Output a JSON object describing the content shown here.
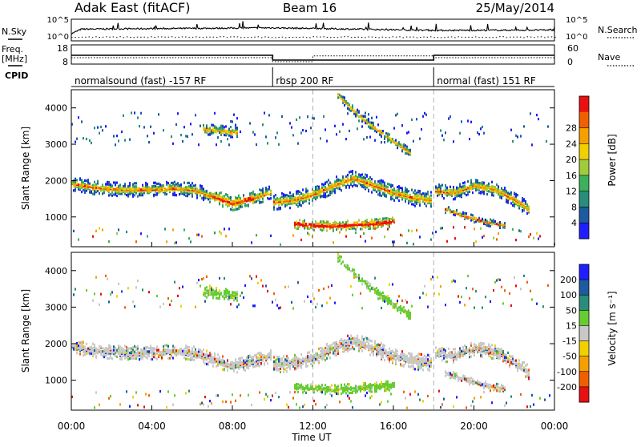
{
  "header": {
    "station": "Adak East (fitACF)",
    "beam": "Beam 16",
    "date": "25/May/2014"
  },
  "side_labels": {
    "nsky": "N.Sky",
    "freq_line1": "Freq.",
    "freq_line2": "[MHz]",
    "cpid": "CPID",
    "nsearch": "N.Search",
    "nave": "Nave"
  },
  "cpid_segments": [
    {
      "label": "normalsound (fast) -157 RF",
      "start_hour": 0,
      "end_hour": 10
    },
    {
      "label": "rbsp 200 RF",
      "start_hour": 10,
      "end_hour": 18
    },
    {
      "label": "normal (fast) 151 RF",
      "start_hour": 18,
      "end_hour": 24
    }
  ],
  "colors": {
    "power_scale": [
      "#1e1eff",
      "#1e5aa0",
      "#2a8c7a",
      "#3cb05a",
      "#a0cc3c",
      "#f0d000",
      "#f5a000",
      "#f06000",
      "#e81010"
    ],
    "velocity_scale": [
      "#1e1eff",
      "#1e5aa0",
      "#2a8c7a",
      "#66cc33",
      "#c8c8c8",
      "#f0d000",
      "#f5a000",
      "#f06000",
      "#e81010"
    ]
  },
  "chart_data": [
    {
      "type": "line",
      "panel": "noise",
      "left_ylabel": "N.Sky",
      "right_ylabel": "N.Search",
      "left_ticks": [
        "10^5",
        "10^0"
      ],
      "right_ticks": [
        "10^5",
        "10^0"
      ],
      "series": [
        {
          "x": [
            0,
            0.5,
            10,
            18,
            24
          ],
          "y": [
            0.3,
            0.55,
            0.62,
            0.48,
            0.5
          ]
        }
      ]
    },
    {
      "type": "line",
      "panel": "frequency",
      "left_ticks": [
        "18",
        "8"
      ],
      "right_ticks": [
        "60",
        "0"
      ],
      "ylim_left": [
        8,
        18
      ],
      "ylim_right": [
        0,
        60
      ],
      "series": [
        {
          "x": [
            0,
            10,
            10,
            18,
            18,
            24
          ],
          "y": [
            12.5,
            12.5,
            9.5,
            9.5,
            12.5,
            12.5
          ]
        },
        {
          "x": [
            0,
            10,
            10,
            12,
            12,
            18,
            18,
            24
          ],
          "y": [
            18,
            18,
            3,
            3,
            25,
            25,
            18,
            18
          ]
        }
      ]
    },
    {
      "type": "heatmap",
      "panel": "power",
      "ylabel": "Slant Range [km]",
      "colorbar_label": "Power [dB]",
      "colorbar_ticks": [
        "4",
        "8",
        "12",
        "16",
        "20",
        "24",
        "28"
      ],
      "yticks": [
        "1000",
        "2000",
        "3000",
        "4000"
      ],
      "ylim": [
        180,
        4500
      ],
      "x_ticks": [
        "00:00",
        "04:00",
        "08:00",
        "12:00",
        "16:00",
        "20:00",
        "00:00"
      ],
      "xlim": [
        0,
        24
      ],
      "bands": [
        {
          "x": [
            0,
            1,
            2,
            3,
            4,
            5,
            6,
            7,
            8,
            9,
            9.9
          ],
          "y": [
            1950,
            1850,
            1800,
            1780,
            1790,
            1820,
            1780,
            1600,
            1400,
            1550,
            1700
          ],
          "width_km": 240
        },
        {
          "x": [
            10,
            11,
            12,
            13,
            14,
            15,
            16,
            17,
            17.9
          ],
          "y": [
            1450,
            1500,
            1650,
            1900,
            2100,
            1900,
            1700,
            1550,
            1500
          ],
          "width_km": 280
        },
        {
          "x": [
            11,
            12,
            13,
            14,
            15,
            16
          ],
          "y": [
            850,
            800,
            780,
            820,
            850,
            900
          ],
          "width_km": 170
        },
        {
          "x": [
            13.2,
            14,
            15,
            16,
            16.8
          ],
          "y": [
            4400,
            3950,
            3500,
            3100,
            2800
          ],
          "width_km": 140
        },
        {
          "x": [
            18,
            19,
            20,
            21,
            22,
            22.7
          ],
          "y": [
            1750,
            1700,
            1900,
            1800,
            1500,
            1250
          ],
          "width_km": 240
        },
        {
          "x": [
            18.5,
            19.5,
            20.5,
            21.5
          ],
          "y": [
            1250,
            1050,
            900,
            800
          ],
          "width_km": 120
        },
        {
          "x": [
            6.5,
            7.5,
            8.2
          ],
          "y": [
            3450,
            3400,
            3350
          ],
          "width_km": 180
        }
      ]
    },
    {
      "type": "heatmap",
      "panel": "velocity",
      "ylabel": "Slant Range [km]",
      "colorbar_label": "Velocity [m s⁻¹]",
      "colorbar_ticks": [
        "200",
        "100",
        "50",
        "15",
        "-15",
        "-50",
        "-100",
        "-200"
      ],
      "yticks": [
        "1000",
        "2000",
        "3000",
        "4000"
      ],
      "ylim": [
        180,
        4500
      ],
      "xlabel": "Time UT",
      "x_ticks": [
        "00:00",
        "04:00",
        "08:00",
        "12:00",
        "16:00",
        "20:00",
        "00:00"
      ],
      "xlim": [
        0,
        24
      ]
    }
  ]
}
